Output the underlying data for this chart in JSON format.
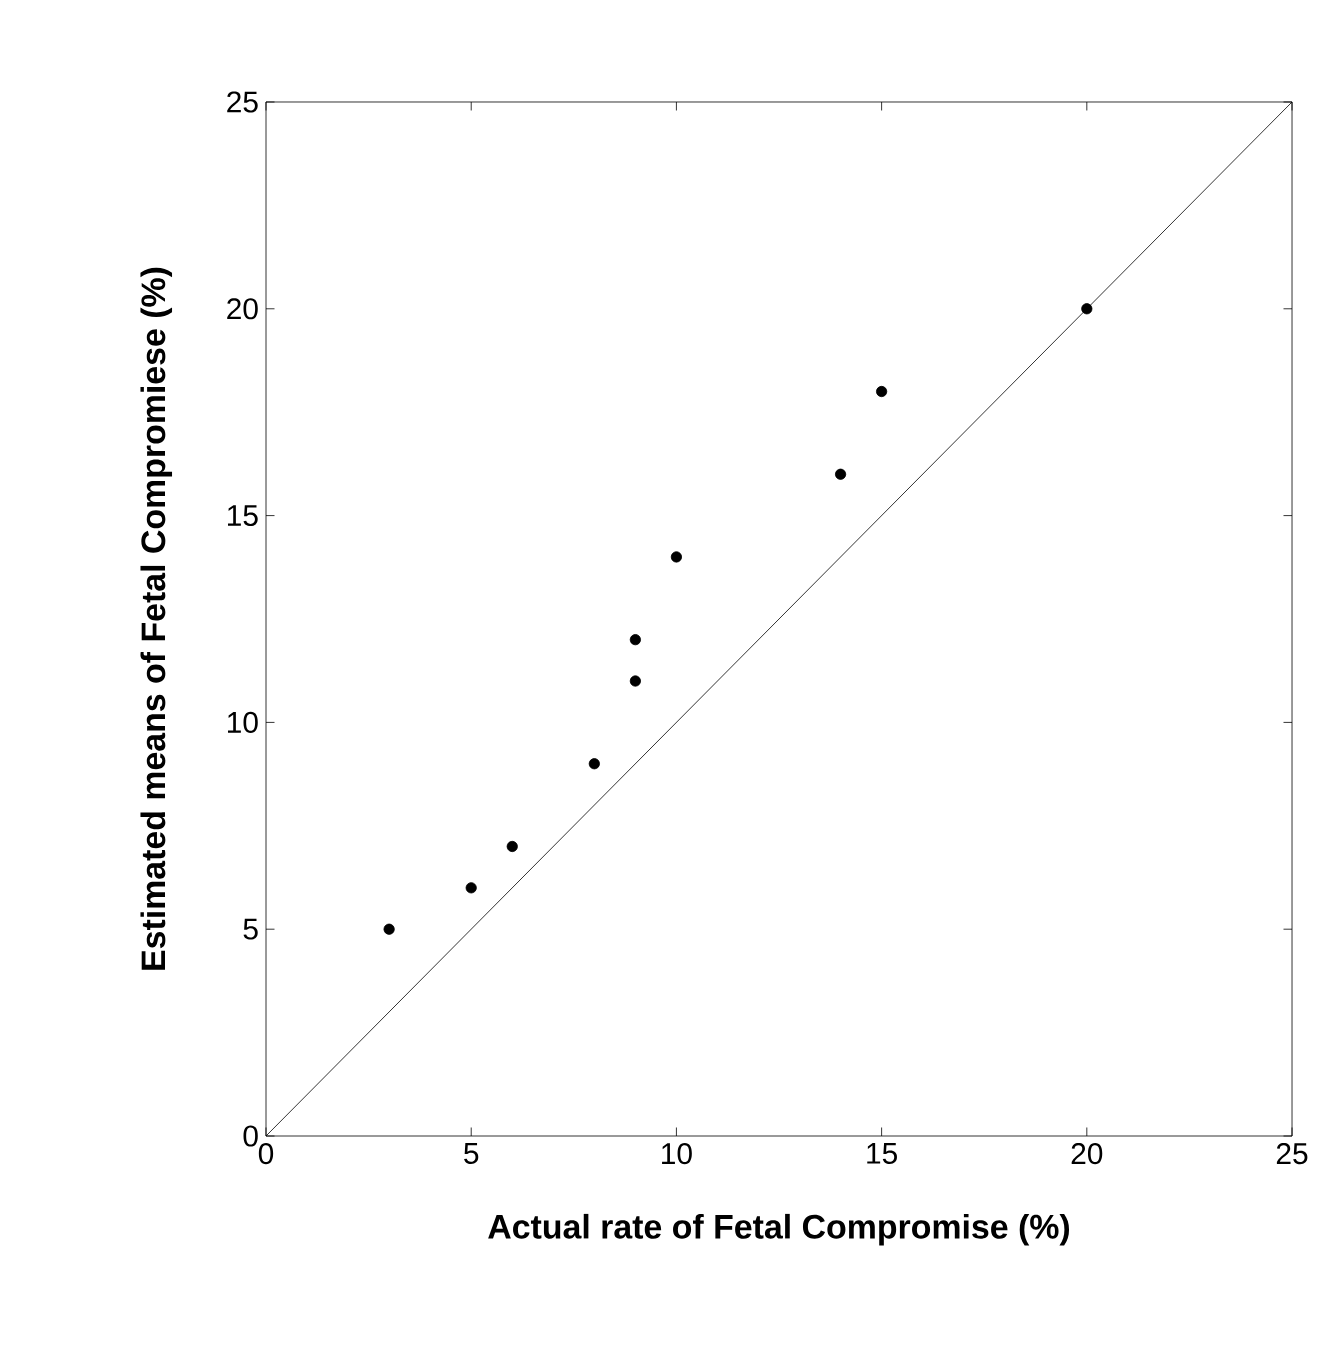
{
  "chart_data": {
    "type": "scatter",
    "xlabel": "Actual rate of Fetal Compromise (%)",
    "ylabel": "Estimated means of Fetal Compromiese (%)",
    "xlim": [
      0,
      25
    ],
    "ylim": [
      0,
      25
    ],
    "xticks": [
      0,
      5,
      10,
      15,
      20,
      25
    ],
    "yticks": [
      0,
      5,
      10,
      15,
      20,
      25
    ],
    "grid": false,
    "series": [
      {
        "marker": "circle",
        "color": "#000000",
        "x": [
          3,
          5,
          6,
          8,
          9,
          9,
          10,
          14,
          15,
          20
        ],
        "values": [
          5,
          6,
          7,
          9,
          11,
          12,
          14,
          16,
          18,
          20
        ]
      },
      {
        "type": "line",
        "marker": "none",
        "line_style": "solid",
        "color": "#000000",
        "x": [
          0,
          25
        ],
        "values": [
          0,
          25
        ]
      }
    ]
  }
}
